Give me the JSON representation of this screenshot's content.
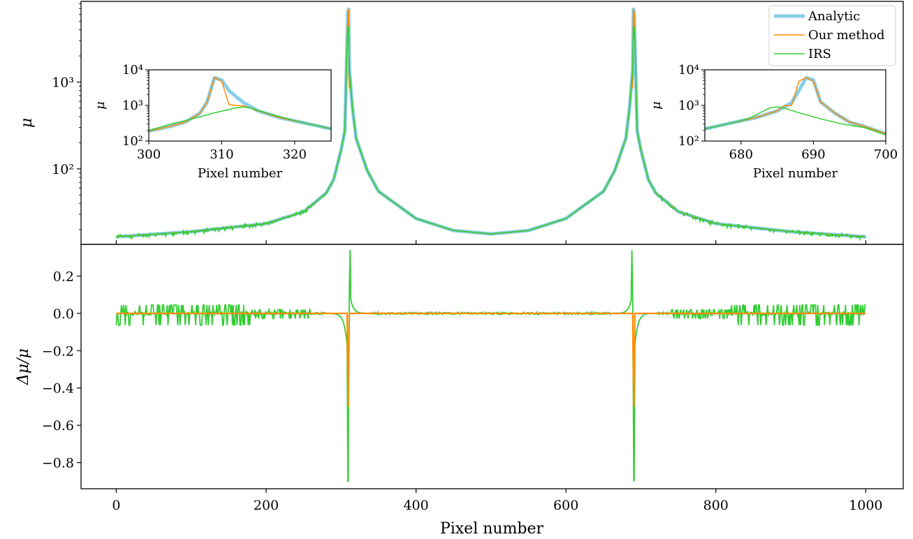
{
  "chart_data": [
    {
      "panel": "top",
      "type": "line",
      "ylabel": "μ",
      "yscale": "log",
      "xlim": [
        -47,
        1050
      ],
      "ylim": [
        13.5,
        8500
      ],
      "yticks": [
        {
          "value": 100,
          "label": "10²"
        },
        {
          "value": 1000,
          "label": "10³"
        }
      ],
      "legend_position": "top-right",
      "series": [
        {
          "name": "Analytic",
          "color": "#87CEEB"
        },
        {
          "name": "Our method",
          "color": "#FF8C00"
        },
        {
          "name": "IRS",
          "color": "#32CD32"
        }
      ],
      "caustic_pixels": [
        309.5,
        689.5
      ],
      "points": [
        [
          0,
          16.5
        ],
        [
          100,
          18.9
        ],
        [
          200,
          23.4
        ],
        [
          250,
          32.1
        ],
        [
          280,
          52.5
        ],
        [
          290,
          75
        ],
        [
          300,
          165
        ],
        [
          305,
          275
        ],
        [
          309,
          6500
        ],
        [
          310,
          6900
        ],
        [
          311,
          1400
        ],
        [
          315,
          520
        ],
        [
          320,
          225
        ],
        [
          335,
          95
        ],
        [
          350,
          55
        ],
        [
          400,
          26.8
        ],
        [
          450,
          19.5
        ],
        [
          500,
          17.8
        ]
      ],
      "insets": [
        {
          "xlim": [
            300,
            325
          ],
          "ylim": [
            100,
            10000
          ],
          "xticks": [
            300,
            310,
            320
          ],
          "yticks": [
            {
              "value": 100,
              "label": "10²"
            },
            {
              "value": 1000,
              "label": "10³"
            },
            {
              "value": 10000,
              "label": "10⁴"
            }
          ],
          "xlabel": "Pixel number",
          "ylabel": "μ",
          "analytic": [
            [
              300,
              190
            ],
            [
              303,
              260
            ],
            [
              305,
              340
            ],
            [
              307,
              600
            ],
            [
              308,
              1250
            ],
            [
              309,
              6000
            ],
            [
              310,
              5200
            ],
            [
              311,
              2600
            ],
            [
              312,
              1750
            ],
            [
              313,
              1200
            ],
            [
              315,
              700
            ],
            [
              318,
              450
            ],
            [
              322,
              300
            ],
            [
              325,
              220
            ]
          ],
          "ours": [
            [
              300,
              190
            ],
            [
              303,
              260
            ],
            [
              305,
              340
            ],
            [
              307,
              600
            ],
            [
              308,
              1250
            ],
            [
              309,
              6000
            ],
            [
              310,
              4800
            ],
            [
              311,
              1050
            ],
            [
              312,
              1000
            ],
            [
              313,
              980
            ],
            [
              315,
              700
            ],
            [
              318,
              450
            ],
            [
              322,
              300
            ],
            [
              325,
              220
            ]
          ],
          "irs": [
            [
              300,
              195
            ],
            [
              303,
              300
            ],
            [
              306,
              420
            ],
            [
              309,
              620
            ],
            [
              312,
              860
            ],
            [
              313,
              910
            ],
            [
              314,
              840
            ],
            [
              316,
              620
            ],
            [
              319,
              420
            ],
            [
              322,
              300
            ],
            [
              325,
              220
            ]
          ]
        },
        {
          "xlim": [
            675,
            700
          ],
          "ylim": [
            100,
            10000
          ],
          "xticks": [
            680,
            690,
            700
          ],
          "yticks": [
            {
              "value": 100,
              "label": "10²"
            },
            {
              "value": 1000,
              "label": "10³"
            },
            {
              "value": 10000,
              "label": "10⁴"
            }
          ],
          "xlabel": "Pixel number",
          "ylabel": "μ",
          "analytic": [
            [
              675,
              220
            ],
            [
              678,
              300
            ],
            [
              682,
              450
            ],
            [
              685,
              700
            ],
            [
              687,
              1200
            ],
            [
              688,
              2600
            ],
            [
              689,
              6000
            ],
            [
              690,
              5200
            ],
            [
              691,
              1250
            ],
            [
              693,
              600
            ],
            [
              695,
              340
            ],
            [
              697,
              260
            ],
            [
              700,
              160
            ]
          ],
          "ours": [
            [
              675,
              220
            ],
            [
              678,
              300
            ],
            [
              682,
              450
            ],
            [
              685,
              700
            ],
            [
              686,
              980
            ],
            [
              687,
              1000
            ],
            [
              688,
              4800
            ],
            [
              689,
              6000
            ],
            [
              690,
              4800
            ],
            [
              691,
              1250
            ],
            [
              693,
              600
            ],
            [
              695,
              340
            ],
            [
              697,
              260
            ],
            [
              700,
              160
            ]
          ],
          "irs": [
            [
              675,
              220
            ],
            [
              678,
              300
            ],
            [
              681,
              420
            ],
            [
              684,
              860
            ],
            [
              685,
              910
            ],
            [
              686,
              840
            ],
            [
              688,
              620
            ],
            [
              691,
              420
            ],
            [
              694,
              300
            ],
            [
              697,
              240
            ],
            [
              700,
              150
            ]
          ]
        }
      ]
    },
    {
      "panel": "bottom",
      "type": "line",
      "xlabel": "Pixel number",
      "ylabel": "Δμ/μ",
      "xlim": [
        -47,
        1050
      ],
      "ylim": [
        -0.94,
        0.37
      ],
      "xticks": [
        0,
        200,
        400,
        600,
        800,
        1000
      ],
      "yticks": [
        {
          "value": 0.2,
          "label": "0.2"
        },
        {
          "value": 0.0,
          "label": "0.0"
        },
        {
          "value": -0.2,
          "label": "−0.2"
        },
        {
          "value": -0.4,
          "label": "−0.4"
        },
        {
          "value": -0.6,
          "label": "−0.6"
        },
        {
          "value": -0.8,
          "label": "−0.8"
        }
      ],
      "series": [
        {
          "name": "Our method",
          "color": "#FF8C00",
          "spike_min": -0.5
        },
        {
          "name": "IRS",
          "color": "#32CD32",
          "spike_min": -0.9,
          "spike_max": 0.34
        }
      ]
    }
  ]
}
